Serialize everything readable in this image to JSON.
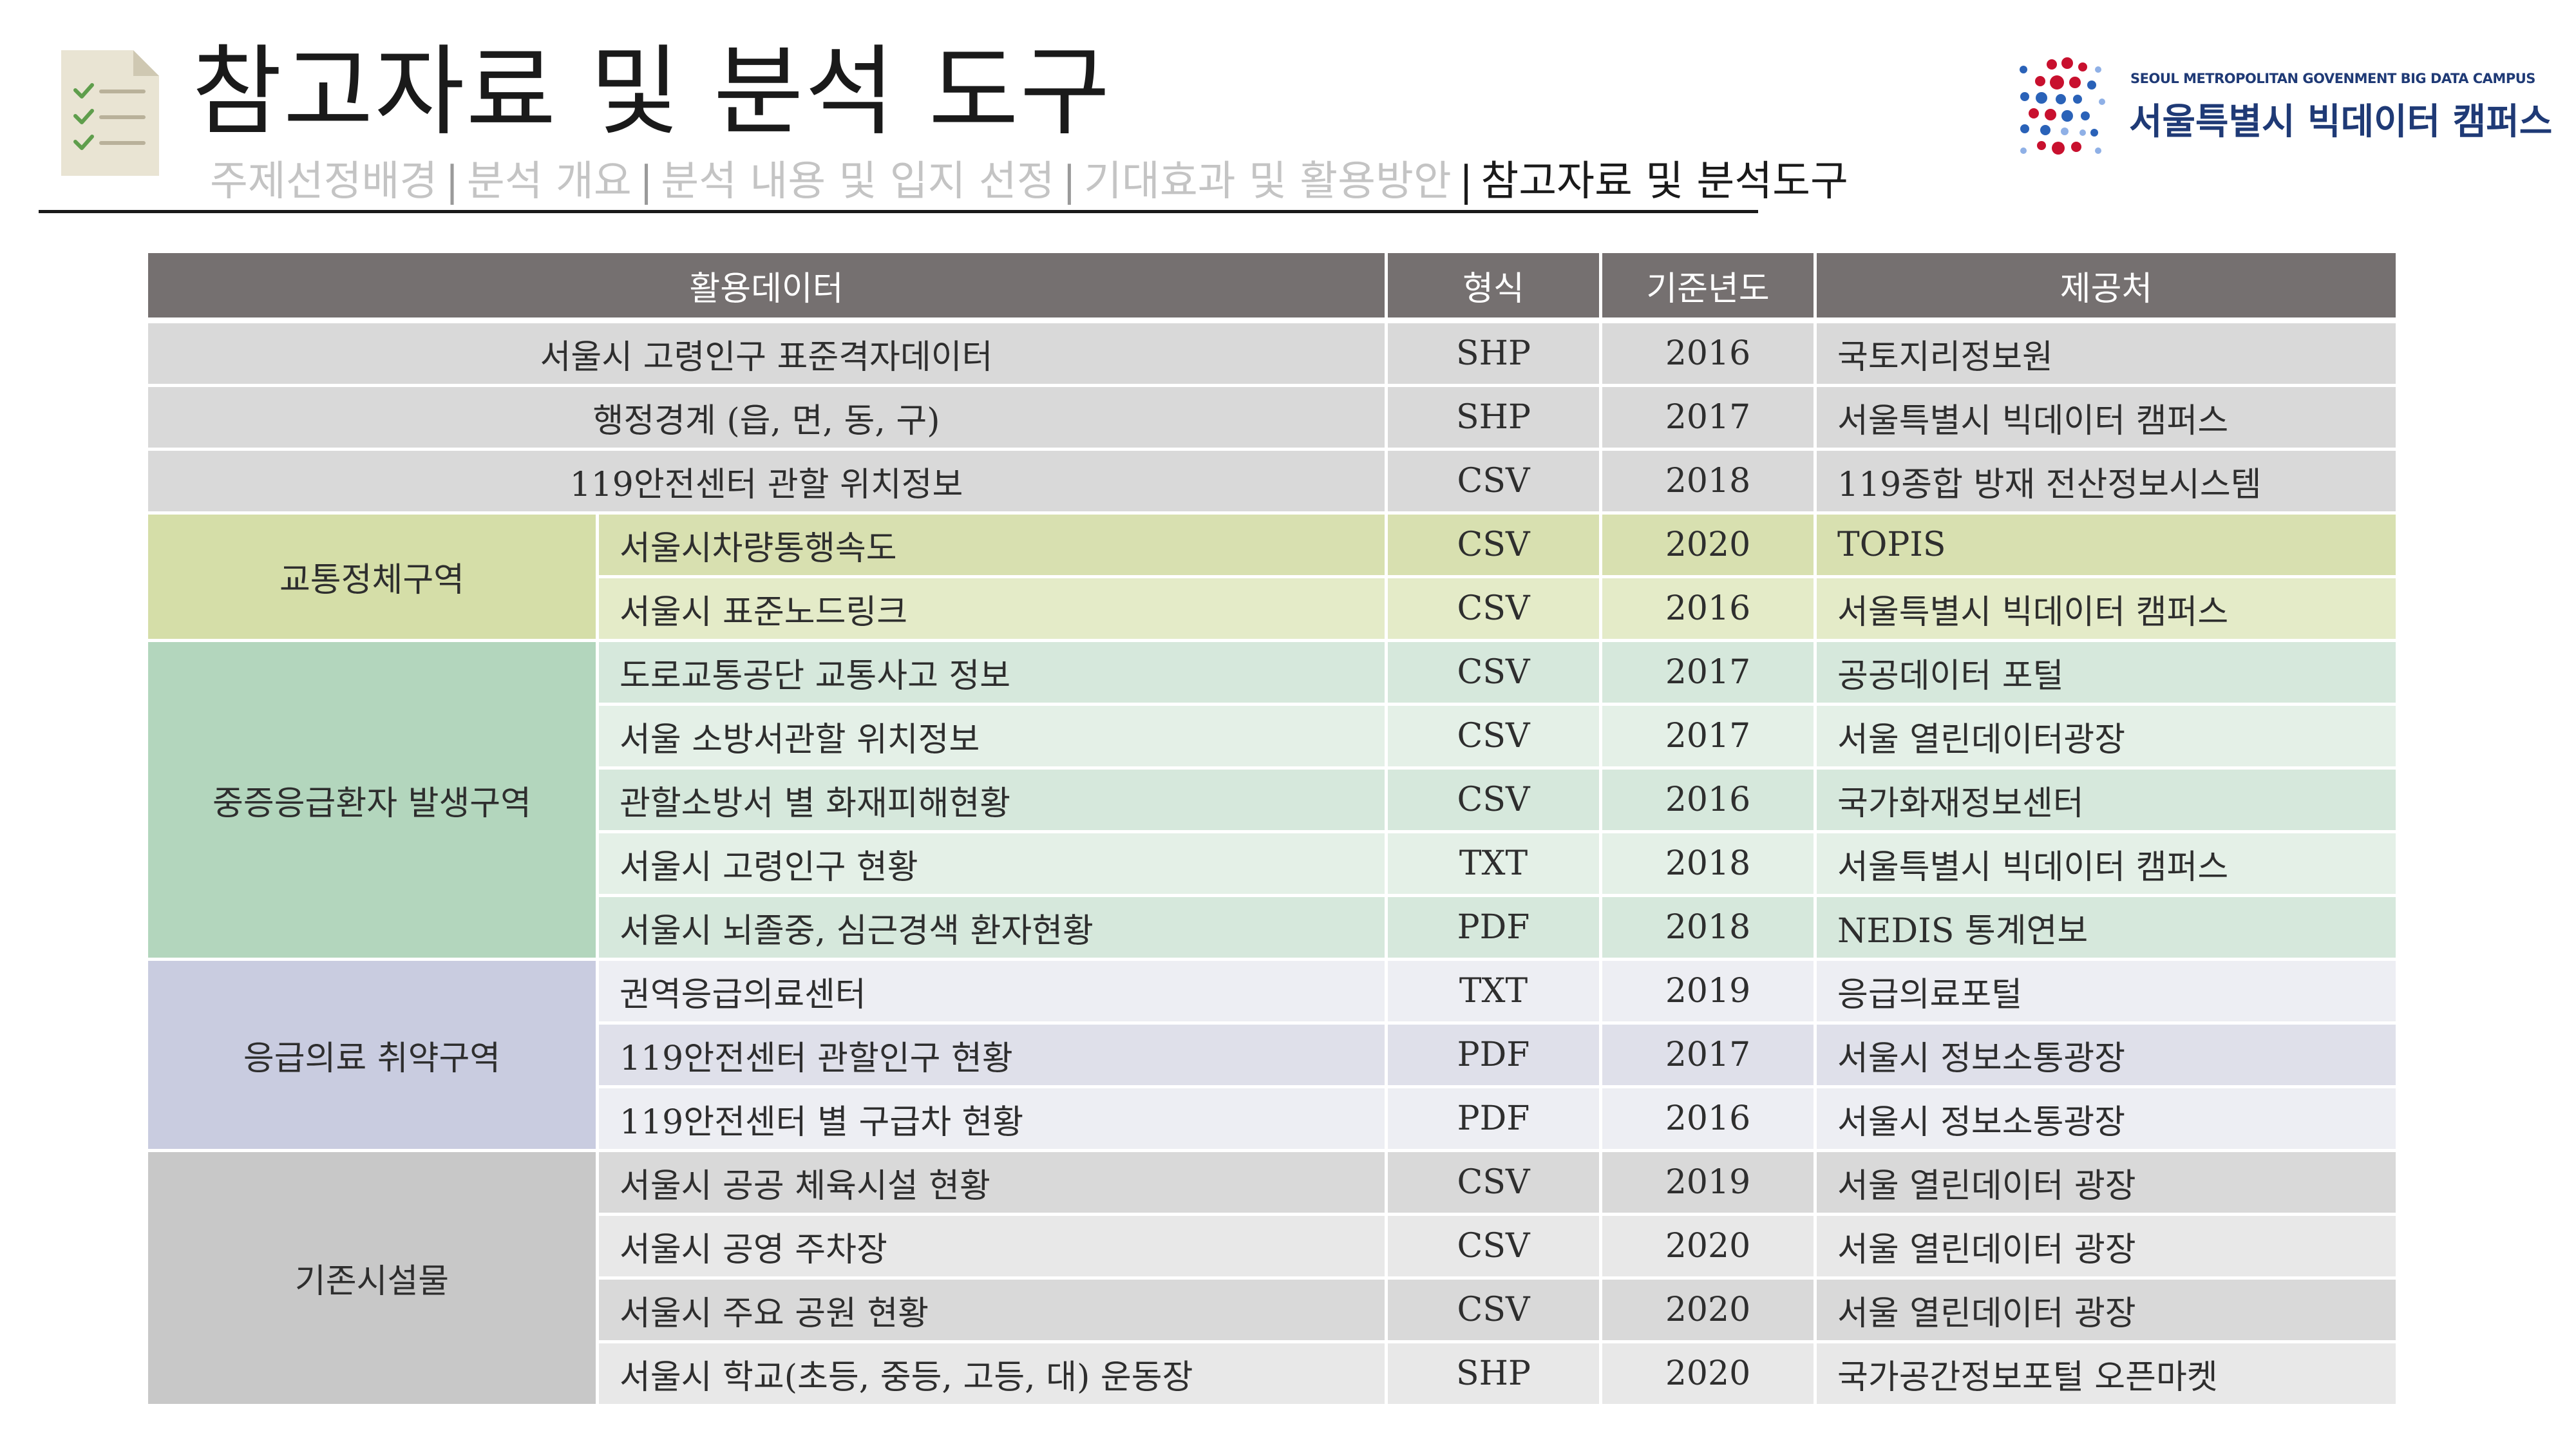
{
  "header": {
    "title": "참고자료 및 분석 도구",
    "breadcrumb": [
      "주제선정배경",
      "분석 개요",
      "분석 내용 및 입지 선정",
      "기대효과 및 활용방안"
    ],
    "breadcrumb_current": "참고자료 및 분석도구",
    "separator": "|"
  },
  "logo": {
    "subtitle": "SEOUL METROPOLITAN GOVENMENT BIG DATA CAMPUS",
    "name": "서울특별시 빅데이터 캠퍼스",
    "colors": [
      "#c8102e",
      "#2a62b8",
      "#6b8ed6"
    ]
  },
  "icon": "checklist-document-icon",
  "table": {
    "headers": [
      "활용데이터",
      "형식",
      "기준년도",
      "제공처"
    ],
    "top_rows": [
      {
        "data": "서울시 고령인구 표준격자데이터",
        "format": "SHP",
        "year": "2016",
        "provider": "국토지리정보원"
      },
      {
        "data": "행정경계 (읍, 면, 동, 구)",
        "format": "SHP",
        "year": "2017",
        "provider": "서울특별시 빅데이터 캠퍼스"
      },
      {
        "data": "119안전센터 관할 위치정보",
        "format": "CSV",
        "year": "2018",
        "provider": "119종합 방재 전산정보시스템"
      }
    ],
    "groups": [
      {
        "category": "교통정체구역",
        "rows": [
          {
            "data": "서울시차량통행속도",
            "format": "CSV",
            "year": "2020",
            "provider": "TOPIS"
          },
          {
            "data": "서울시 표준노드링크",
            "format": "CSV",
            "year": "2016",
            "provider": "서울특별시 빅데이터 캠퍼스"
          }
        ]
      },
      {
        "category": "중증응급환자 발생구역",
        "rows": [
          {
            "data": "도로교통공단 교통사고 정보",
            "format": "CSV",
            "year": "2017",
            "provider": "공공데이터 포털"
          },
          {
            "data": "서울 소방서관할 위치정보",
            "format": "CSV",
            "year": "2017",
            "provider": "서울 열린데이터광장"
          },
          {
            "data": "관할소방서 별 화재피해현황",
            "format": "CSV",
            "year": "2016",
            "provider": "국가화재정보센터"
          },
          {
            "data": "서울시 고령인구 현황",
            "format": "TXT",
            "year": "2018",
            "provider": "서울특별시 빅데이터 캠퍼스"
          },
          {
            "data": "서울시 뇌졸중, 심근경색 환자현황",
            "format": "PDF",
            "year": "2018",
            "provider": "NEDIS 통계연보"
          }
        ]
      },
      {
        "category": "응급의료 취약구역",
        "rows": [
          {
            "data": "권역응급의료센터",
            "format": "TXT",
            "year": "2019",
            "provider": "응급의료포털"
          },
          {
            "data": "119안전센터 관할인구 현황",
            "format": "PDF",
            "year": "2017",
            "provider": "서울시 정보소통광장"
          },
          {
            "data": "119안전센터 별 구급차 현황",
            "format": "PDF",
            "year": "2016",
            "provider": "서울시 정보소통광장"
          }
        ]
      },
      {
        "category": "기존시설물",
        "rows": [
          {
            "data": "서울시 공공 체육시설 현황",
            "format": "CSV",
            "year": "2019",
            "provider": "서울 열린데이터 광장"
          },
          {
            "data": "서울시 공영 주차장",
            "format": "CSV",
            "year": "2020",
            "provider": "서울 열린데이터 광장"
          },
          {
            "data": "서울시 주요 공원 현황",
            "format": "CSV",
            "year": "2020",
            "provider": "서울 열린데이터 광장"
          },
          {
            "data": "서울시 학교(초등, 중등, 고등, 대) 운동장",
            "format": "SHP",
            "year": "2020",
            "provider": "국가공간정보포털 오픈마켓"
          }
        ]
      }
    ]
  }
}
